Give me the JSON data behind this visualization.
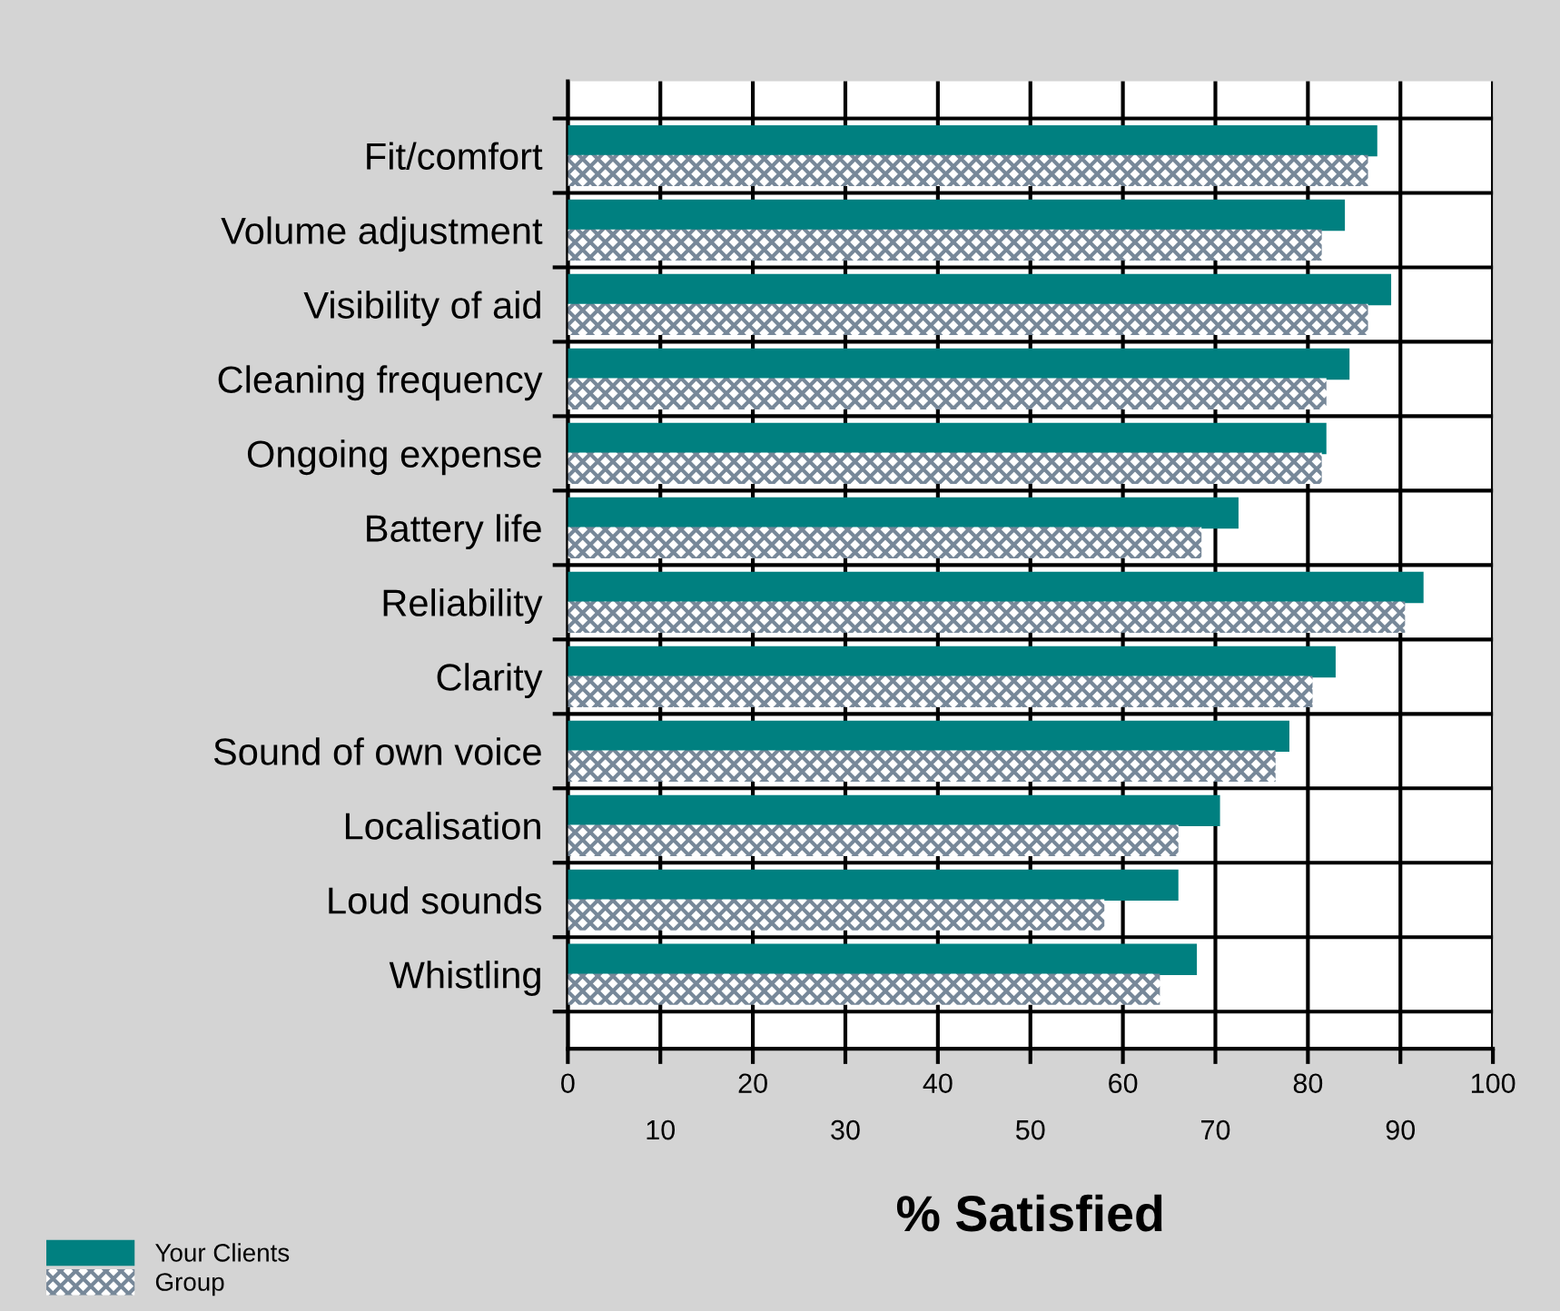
{
  "chart_data": {
    "type": "bar",
    "orientation": "horizontal",
    "xlabel": "% Satisfied",
    "categories": [
      "Fit/comfort",
      "Volume adjustment",
      "Visibility of aid",
      "Cleaning frequency",
      "Ongoing expense",
      "Battery life",
      "Reliability",
      "Clarity",
      "Sound of own voice",
      "Localisation",
      "Loud sounds",
      "Whistling"
    ],
    "series": [
      {
        "name": "Your Clients",
        "color": "#008080",
        "values": [
          87.5,
          84,
          89,
          84.5,
          82,
          72.5,
          92.5,
          83,
          78,
          70.5,
          66,
          68
        ]
      },
      {
        "name": "Group",
        "color": "#778899",
        "values": [
          86.5,
          81.5,
          86.5,
          82,
          81.5,
          68.5,
          90.5,
          80.5,
          76.5,
          66,
          58,
          64
        ]
      }
    ],
    "xlim": [
      0,
      100
    ],
    "xticks": [
      0,
      {
        "value": 10,
        "label": null
      },
      20,
      {
        "value": 30,
        "label": null
      },
      40,
      {
        "value": 50,
        "label": null
      },
      60,
      {
        "value": 70,
        "label": null
      },
      80,
      {
        "value": 90,
        "label": null
      },
      100
    ],
    "x2lim": [
      0,
      100
    ],
    "x2ticks": [
      10,
      30,
      50,
      70,
      90
    ],
    "grid": true,
    "legend": "bottom left"
  }
}
